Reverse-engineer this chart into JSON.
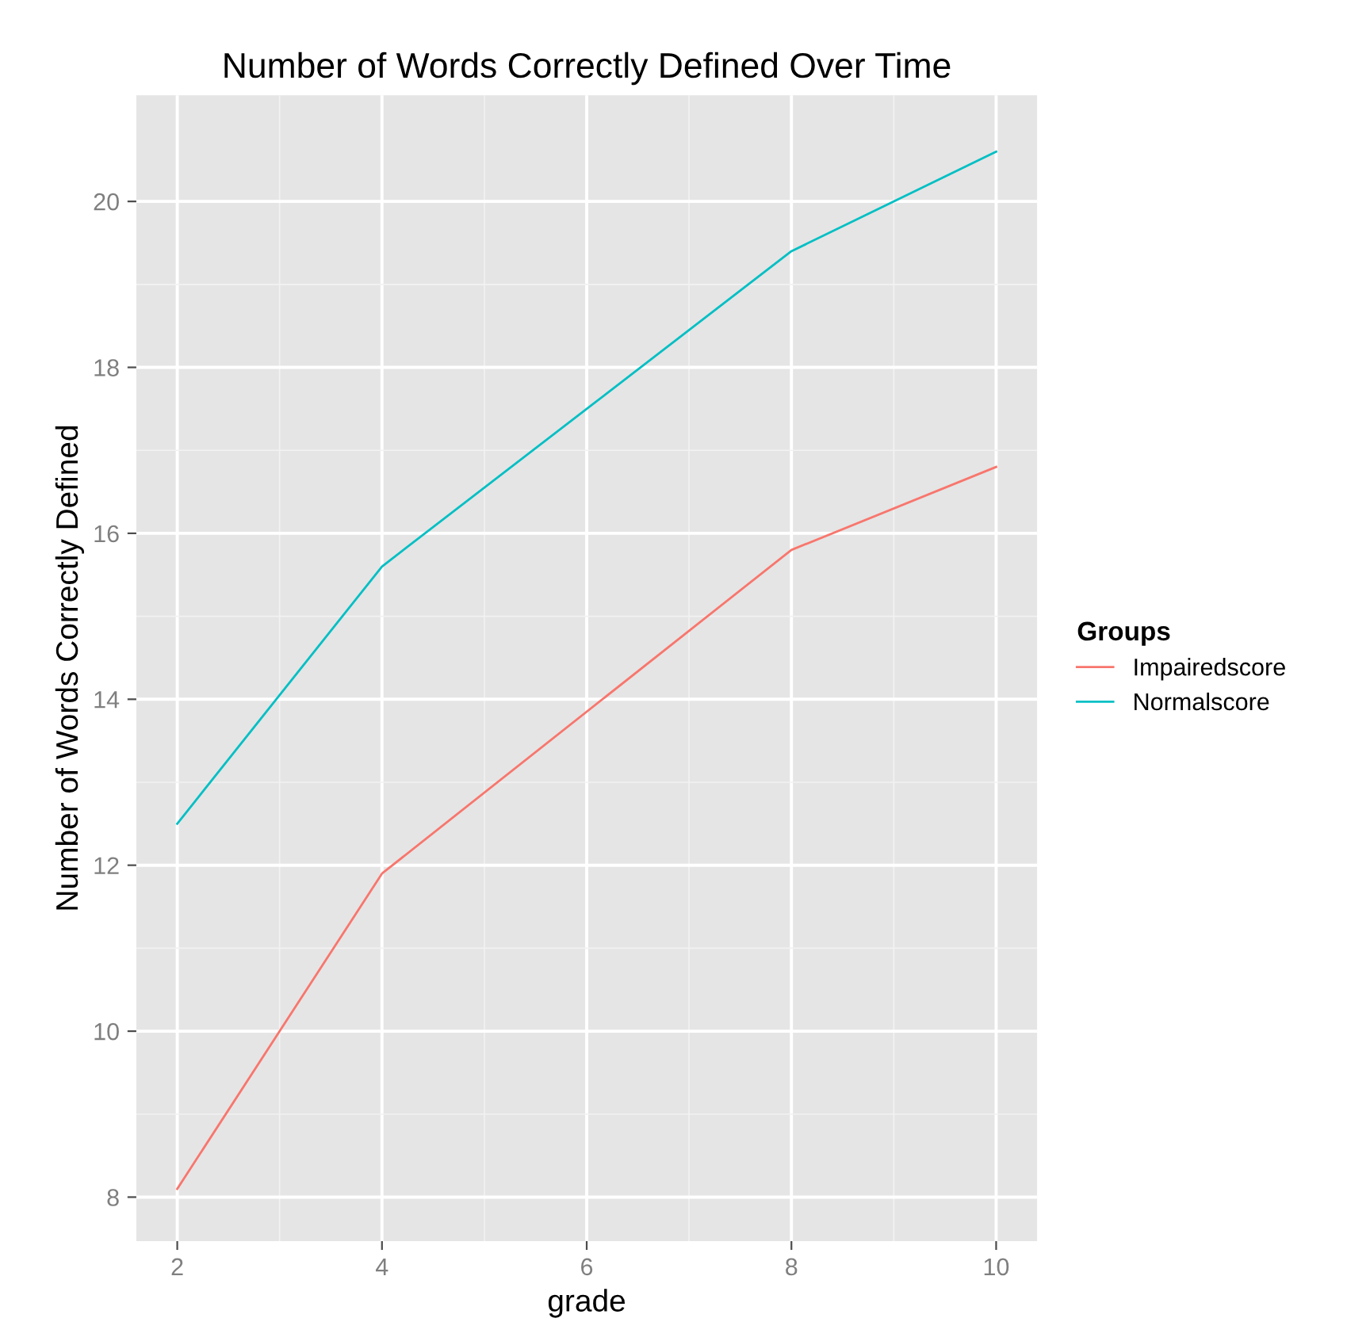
{
  "chart_data": {
    "type": "line",
    "title": "Number of Words Correctly Defined Over Time",
    "xlabel": "grade",
    "ylabel": "Number of Words Correctly Defined",
    "legend_title": "Groups",
    "legend": "right",
    "x": [
      2,
      4,
      8,
      10
    ],
    "series": [
      {
        "name": "Impairedscore",
        "color": "#f8766d",
        "values": [
          8.1,
          11.9,
          15.8,
          16.8
        ]
      },
      {
        "name": "Normalscore",
        "color": "#00bfc4",
        "values": [
          12.5,
          15.6,
          19.4,
          20.6
        ]
      }
    ],
    "xlim": [
      1.6,
      10.4
    ],
    "xticks": [
      2,
      4,
      6,
      8,
      10
    ],
    "ylim": [
      7.47,
      21.28
    ],
    "yticks": [
      8,
      10,
      12,
      14,
      16,
      18,
      20
    ],
    "grid": true,
    "marker": "none",
    "line_style": "solid"
  }
}
